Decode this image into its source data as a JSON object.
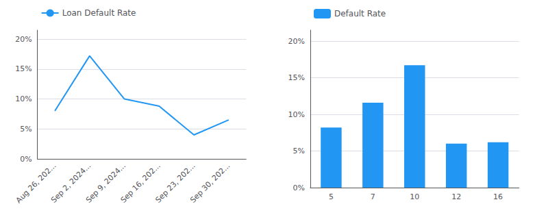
{
  "chart_data": [
    {
      "type": "line",
      "categories": [
        "Aug 26, 202...",
        "Sep 2, 2024...",
        "Sep 9, 2024...",
        "Sep 16, 202...",
        "Sep 23, 202...",
        "Sep 30, 202..."
      ],
      "series": [
        {
          "name": "Loan Default Rate",
          "color": "#2196F3",
          "values": [
            0.08,
            0.172,
            0.1,
            0.088,
            0.04,
            0.065
          ]
        }
      ],
      "ylim": [
        0,
        0.215
      ],
      "yticks": [
        {
          "value": 0.0,
          "label": "0%"
        },
        {
          "value": 0.05,
          "label": "5%"
        },
        {
          "value": 0.1,
          "label": "10%"
        },
        {
          "value": 0.15,
          "label": "15%"
        },
        {
          "value": 0.2,
          "label": "20%"
        }
      ],
      "grid": true,
      "legend": "top-left"
    },
    {
      "type": "bar",
      "categories": [
        "5",
        "7",
        "10",
        "12",
        "16"
      ],
      "series": [
        {
          "name": "Default Rate",
          "color": "#2196F3",
          "values": [
            0.082,
            0.116,
            0.167,
            0.06,
            0.062
          ]
        }
      ],
      "ylim": [
        0,
        0.215
      ],
      "yticks": [
        {
          "value": 0.0,
          "label": "0%"
        },
        {
          "value": 0.05,
          "label": "5%"
        },
        {
          "value": 0.1,
          "label": "10%"
        },
        {
          "value": 0.15,
          "label": "15%"
        },
        {
          "value": 0.2,
          "label": "20%"
        }
      ],
      "grid": true,
      "legend": "top-left"
    }
  ]
}
